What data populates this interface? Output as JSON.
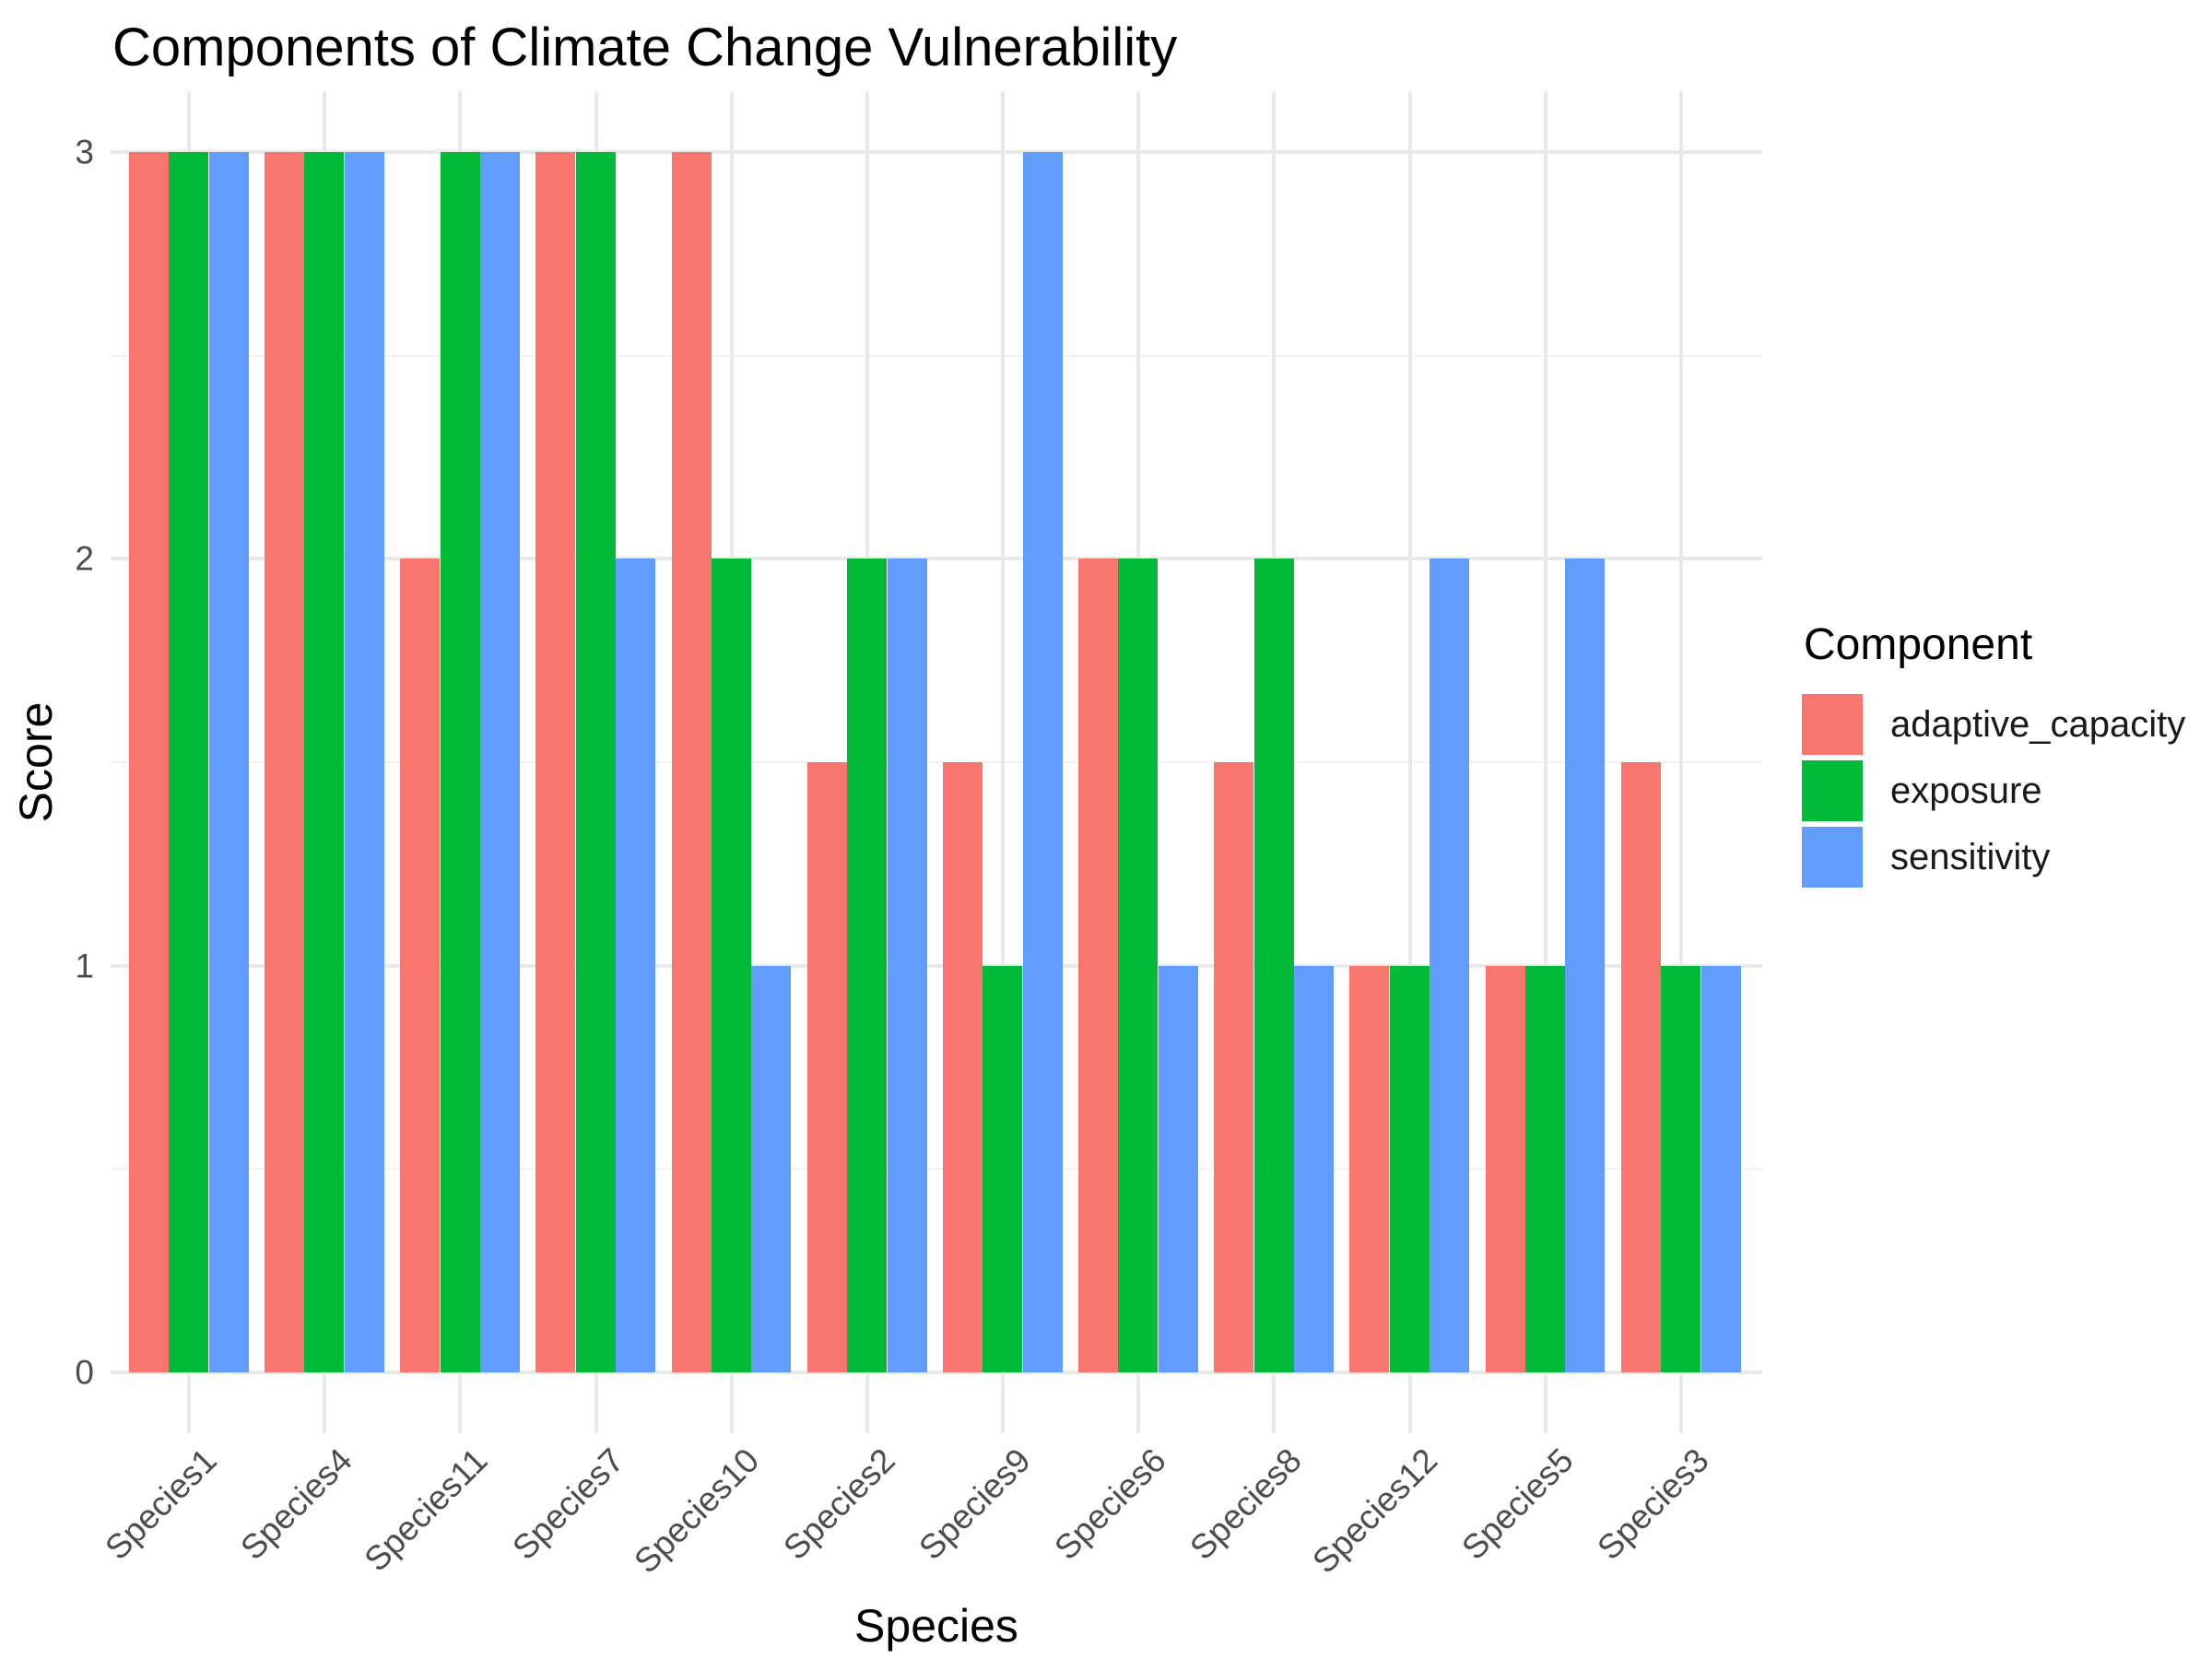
{
  "title": "Components of Climate Change Vulnerability",
  "chart_data": {
    "type": "bar",
    "title": "Components of Climate Change Vulnerability",
    "xlabel": "Species",
    "ylabel": "Score",
    "ylim": [
      0,
      3
    ],
    "yticks": [
      0,
      1,
      2,
      3
    ],
    "y_minor_ticks": [
      0.5,
      1.5,
      2.5
    ],
    "grid": true,
    "legend_position": "right",
    "legend_title": "Component",
    "categories": [
      "Species1",
      "Species4",
      "Species11",
      "Species7",
      "Species10",
      "Species2",
      "Species9",
      "Species6",
      "Species8",
      "Species12",
      "Species5",
      "Species3"
    ],
    "series": [
      {
        "name": "adaptive_capacity",
        "color": "#F8766D",
        "values": [
          3,
          3,
          2,
          3,
          3,
          1.5,
          1.5,
          2,
          1.5,
          1,
          1,
          1.5
        ]
      },
      {
        "name": "exposure",
        "color": "#00BA38",
        "values": [
          3,
          3,
          3,
          3,
          2,
          2,
          1,
          2,
          2,
          1,
          1,
          1
        ]
      },
      {
        "name": "sensitivity",
        "color": "#619CFF",
        "values": [
          3,
          3,
          3,
          2,
          1,
          2,
          3,
          1,
          1,
          2,
          2,
          1
        ]
      }
    ]
  },
  "axes": {
    "x_title": "Species",
    "y_title": "Score",
    "y_tick_labels": [
      "0",
      "1",
      "2",
      "3"
    ]
  },
  "legend": {
    "title": "Component",
    "items": [
      {
        "label": "adaptive_capacity",
        "color": "#F8766D"
      },
      {
        "label": "exposure",
        "color": "#00BA38"
      },
      {
        "label": "sensitivity",
        "color": "#619CFF"
      }
    ]
  },
  "colors": {
    "bar_adaptive_capacity": "#F8766D",
    "bar_exposure": "#00BA38",
    "bar_sensitivity": "#619CFF",
    "grid_major": "#E9E9E9",
    "grid_minor": "#F2F2F2",
    "axis_text": "#4D4D4D",
    "background": "#FFFFFF"
  }
}
